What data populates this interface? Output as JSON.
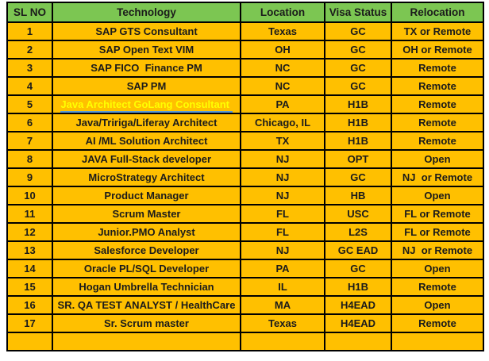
{
  "table": {
    "columns": [
      "SL NO",
      "Technology",
      "Location",
      "Visa Status",
      "Relocation"
    ],
    "rows": [
      {
        "sl_no": "1",
        "technology": "SAP GTS Consultant",
        "location": "Texas",
        "visa_status": "GC",
        "relocation": "TX or Remote",
        "technology_is_link": false
      },
      {
        "sl_no": "2",
        "technology": "SAP Open Text VIM",
        "location": "OH",
        "visa_status": "GC",
        "relocation": "OH or Remote",
        "technology_is_link": false
      },
      {
        "sl_no": "3",
        "technology": "SAP FICO  Finance PM",
        "location": "NC",
        "visa_status": "GC",
        "relocation": "Remote",
        "technology_is_link": false
      },
      {
        "sl_no": "4",
        "technology": "SAP PM",
        "location": "NC",
        "visa_status": "GC",
        "relocation": "Remote",
        "technology_is_link": false
      },
      {
        "sl_no": "5",
        "technology": "Java Architect GoLang Consultant ",
        "location": "PA",
        "visa_status": "H1B",
        "relocation": "Remote",
        "technology_is_link": true
      },
      {
        "sl_no": "6",
        "technology": "Java/Tririga/Liferay Architect",
        "location": "Chicago, IL",
        "visa_status": "H1B",
        "relocation": "Remote",
        "technology_is_link": false
      },
      {
        "sl_no": "7",
        "technology": "AI /ML Solution Architect",
        "location": "TX",
        "visa_status": "H1B",
        "relocation": "Remote",
        "technology_is_link": false
      },
      {
        "sl_no": "8",
        "technology": "JAVA Full-Stack developer",
        "location": "NJ",
        "visa_status": "OPT",
        "relocation": "Open",
        "technology_is_link": false
      },
      {
        "sl_no": "9",
        "technology": "MicroStrategy Architect",
        "location": "NJ",
        "visa_status": "GC",
        "relocation": "NJ  or Remote",
        "technology_is_link": false
      },
      {
        "sl_no": "10",
        "technology": "Product Manager",
        "location": "NJ",
        "visa_status": "HB",
        "relocation": "Open",
        "technology_is_link": false
      },
      {
        "sl_no": "11",
        "technology": "Scrum Master",
        "location": "FL",
        "visa_status": "USC",
        "relocation": "FL or Remote",
        "technology_is_link": false
      },
      {
        "sl_no": "12",
        "technology": "Junior.PMO Analyst",
        "location": "FL",
        "visa_status": "L2S",
        "relocation": "FL or Remote",
        "technology_is_link": false
      },
      {
        "sl_no": "13",
        "technology": "Salesforce Developer",
        "location": "NJ",
        "visa_status": "GC EAD",
        "relocation": "NJ  or Remote",
        "technology_is_link": false
      },
      {
        "sl_no": "14",
        "technology": "Oracle PL/SQL Developer",
        "location": "PA",
        "visa_status": "GC",
        "relocation": "Open",
        "technology_is_link": false
      },
      {
        "sl_no": "15",
        "technology": "Hogan Umbrella Technician",
        "location": "IL",
        "visa_status": "H1B",
        "relocation": "Remote",
        "technology_is_link": false
      },
      {
        "sl_no": "16",
        "technology": "SR. QA TEST ANALYST / HealthCare",
        "location": "MA",
        "visa_status": "H4EAD",
        "relocation": "Open",
        "technology_is_link": false
      },
      {
        "sl_no": "17",
        "technology": "Sr. Scrum master",
        "location": "Texas",
        "visa_status": "H4EAD",
        "relocation": "Remote",
        "technology_is_link": false
      }
    ]
  },
  "colors": {
    "header_bg": "#7CC652",
    "row_bg": "#FFC000",
    "border": "#000000",
    "link_text": "#FFFF00",
    "link_underline": "#5B9BD5"
  }
}
